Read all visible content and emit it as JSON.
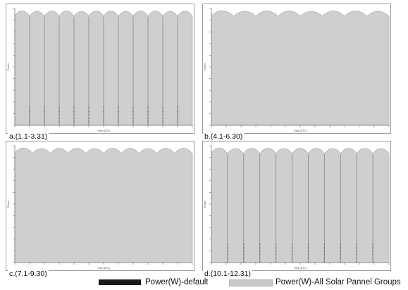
{
  "chart_data": [
    {
      "type": "area",
      "panel_label": "a.(1.1-3.31)",
      "ylabel": "Power",
      "xlabel": "Time (UTC)",
      "default_series_visible": true,
      "dip_count": 12
    },
    {
      "type": "area",
      "panel_label": "b.(4.1-6.30)",
      "ylabel": "Power",
      "xlabel": "Time (UTC)",
      "default_series_visible": false,
      "dip_count": 8
    },
    {
      "type": "area",
      "panel_label": "c.(7.1-9.30)",
      "ylabel": "Power",
      "xlabel": "Time (UTC)",
      "default_series_visible": false,
      "dip_count": 10
    },
    {
      "type": "area",
      "panel_label": "d.(10.1-12.31)",
      "ylabel": "Power",
      "xlabel": "Time (UTC)",
      "default_series_visible": true,
      "dip_count": 11
    }
  ],
  "legend": [
    {
      "name": "Power(W)-default",
      "color": "#1a1a1a"
    },
    {
      "name": "Power(W)-All Solar Pannel Groups",
      "color": "#c8c8c8"
    }
  ],
  "colors": {
    "area_fill": "#cfcfcf",
    "area_edge": "#b0b0b0",
    "default_line": "#8e8e8e",
    "axis": "#777777"
  }
}
